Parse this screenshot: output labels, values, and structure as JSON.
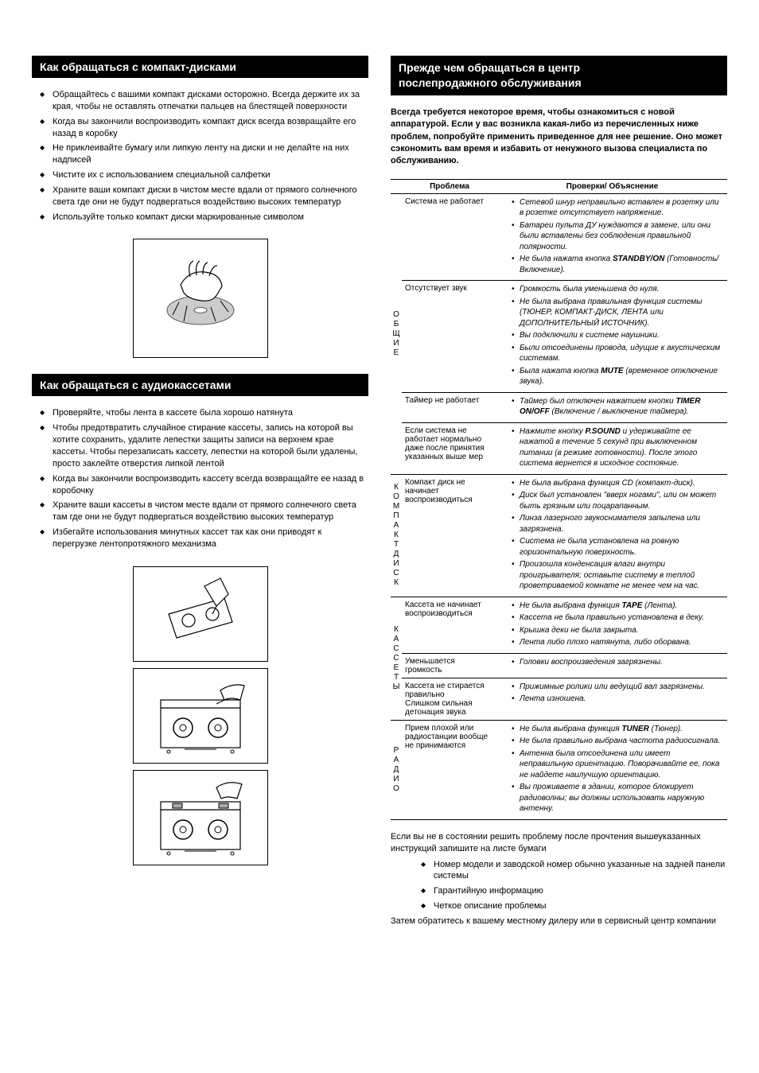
{
  "left": {
    "h1": "Как обращаться с компакт-дисками",
    "cd_tips": [
      "Обращайтесь с вашими компакт дисками осторожно. Всегда держите их за края, чтобы не оставлять отпечатки пальцев на блестящей поверхности",
      "Когда вы закончили воспроизводить компакт диск всегда возвращайте его назад в коробку",
      "Не приклеивайте бумагу или липкую ленту на диски и не делайте на них надписей",
      "Чистите их с использованием специальной салфетки",
      "Храните ваши компакт диски в чистом месте вдали от прямого солнечного света где они не будут подвергаться воздействию высоких температур",
      "Используйте только компакт диски маркированные символом"
    ],
    "h2": "Как обращаться с аудиокассетами",
    "tape_tips": [
      "Проверяйте, чтобы лента в кассете была хорошо натянута",
      "Чтобы предотвратить случайное стирание кассеты, запись на которой вы хотите сохранить, удалите лепестки защиты записи на верхнем крае кассеты. Чтобы перезаписать кассету, лепестки на которой были удалены, просто заклейте отверстия липкой лентой",
      "Когда вы закончили воспроизводить кассету всегда возвращайте ее назад в коробочку",
      "Храните ваши кассеты в чистом месте вдали от прямого солнечного света там где они не будут подвергаться воздействию высоких температур",
      "Избегайте использования минутных кассет так как они приводят к перегрузке лентопротяжного механизма"
    ]
  },
  "right": {
    "h1a": "Прежде чем обращаться в центр",
    "h1b": "послепродажного обслуживания",
    "intro": "Всегда требуется некоторое время, чтобы ознакомиться с новой аппаратурой. Если у вас возникла какая-либо из перечисленных ниже проблем, попробуйте применить приведенное для нее решение. Оно может сэкономить вам время и избавить от ненужного вызова специалиста по обслуживанию.",
    "th1": "Проблема",
    "th2": "Проверки/ Объяснение",
    "cat1": "ОБЩИЕ",
    "cat2": "КОМПАКТ ДИСК",
    "cat3": "КАССЕТЫ",
    "cat4": "РАДИО",
    "r1_p": "Система не работает",
    "r1_c": [
      "Сетевой шнур неправильно вставлен в розетку или в розетке отсутствует напряжение.",
      "Батареи пульта ДУ нуждаются в замене, или они были вставлены без соблюдения правильной полярности.",
      "Не была нажата кнопка <b>STANDBY/ON</b> (Готовность/ Включение)."
    ],
    "r2_p": "Отсутствует звук",
    "r2_c": [
      "Громкость была уменьшена до нуля.",
      "Не была выбрана правильная функция системы (ТЮНЕР, КОМПАКТ-ДИСК, ЛЕНТА или ДОПОЛНИТЕЛЬНЫЙ ИСТОЧНИК).",
      "Вы подключили к системе наушники.",
      "Были отсоединены провода, идущие к акустическим системам.",
      "Была нажата кнопка <b>MUTE</b> (временное отключение звука)."
    ],
    "r3_p": "Таймер не работает",
    "r3_c": [
      "Таймер был отключен нажатием кнопки <b>TIMER ON/OFF</b> (Включение / выключение таймера)."
    ],
    "r4_p": "Если система не работает нормально даже после принятия указанных выше мер",
    "r4_c": [
      "Нажмите кнопку <b>P.SOUND</b> и удерживайте ее нажатой в течение 5 секунд при выключенном питании (в режиме готовности). После этого система вернется в исходное состояние."
    ],
    "r5_p": "Компакт диск не начинает воспроизводиться",
    "r5_c": [
      "Не была выбрана функция CD (компакт-диск).",
      "Диск был установлен \"вверх ногами\", или он может быть грязным или поцарапанным.",
      "Линза лазерного звукоснимателя запылена или загрязнена.",
      "Система не была установлена на ровную горизонтальную поверхность.",
      "Произошла конденсация влаги внутри проигрывателя; оставьте систему в теплой проветриваемой комнате не менее чем на час."
    ],
    "r6_p": "Кассета не начинает воспроизводиться",
    "r6_c": [
      "Не была выбрана функция <b>TAPE</b> (Лента).",
      "Кассета не была правильно установлена в деку.",
      "Крышка деки не была закрыта.",
      "Лента либо плохо натянута, либо оборвана."
    ],
    "r7_p": "Уменьшается громкость",
    "r7_c": [
      "Головки воспроизведения загрязнены."
    ],
    "r8_p": "Кассета не стирается правильно\nСлишком сильная детонация звука",
    "r8_c": [
      "Прижимные ролики или ведущий вал загрязнены.",
      "Лента изношена."
    ],
    "r9_p": "Прием плохой или радиостанции вообще не принимаются",
    "r9_c": [
      "Не была выбрана функция <b>TUNER</b> (Тюнер).",
      "Не была правильно выбрана частота радиосигнала.",
      "Антенна была отсоединена или имеет неправильную ориентацию. Поворачивайте ее, пока не найдете наилучшую ориентацию.",
      "Вы проживаете в здании, которое блокирует радиоволны; вы должны использовать наружную антенну."
    ],
    "footer_pre": "Если вы не в состоянии решить проблему после прочтения вышеуказанных инструкций запишите на листе бумаги",
    "footer_list": [
      "Номер модели и заводской номер обычно указанные на задней панели системы",
      "Гарантийную информацию",
      "Четкое описание проблемы"
    ],
    "footer_post": "Затем обратитесь к вашему местному дилеру или в сервисный центр компании"
  }
}
